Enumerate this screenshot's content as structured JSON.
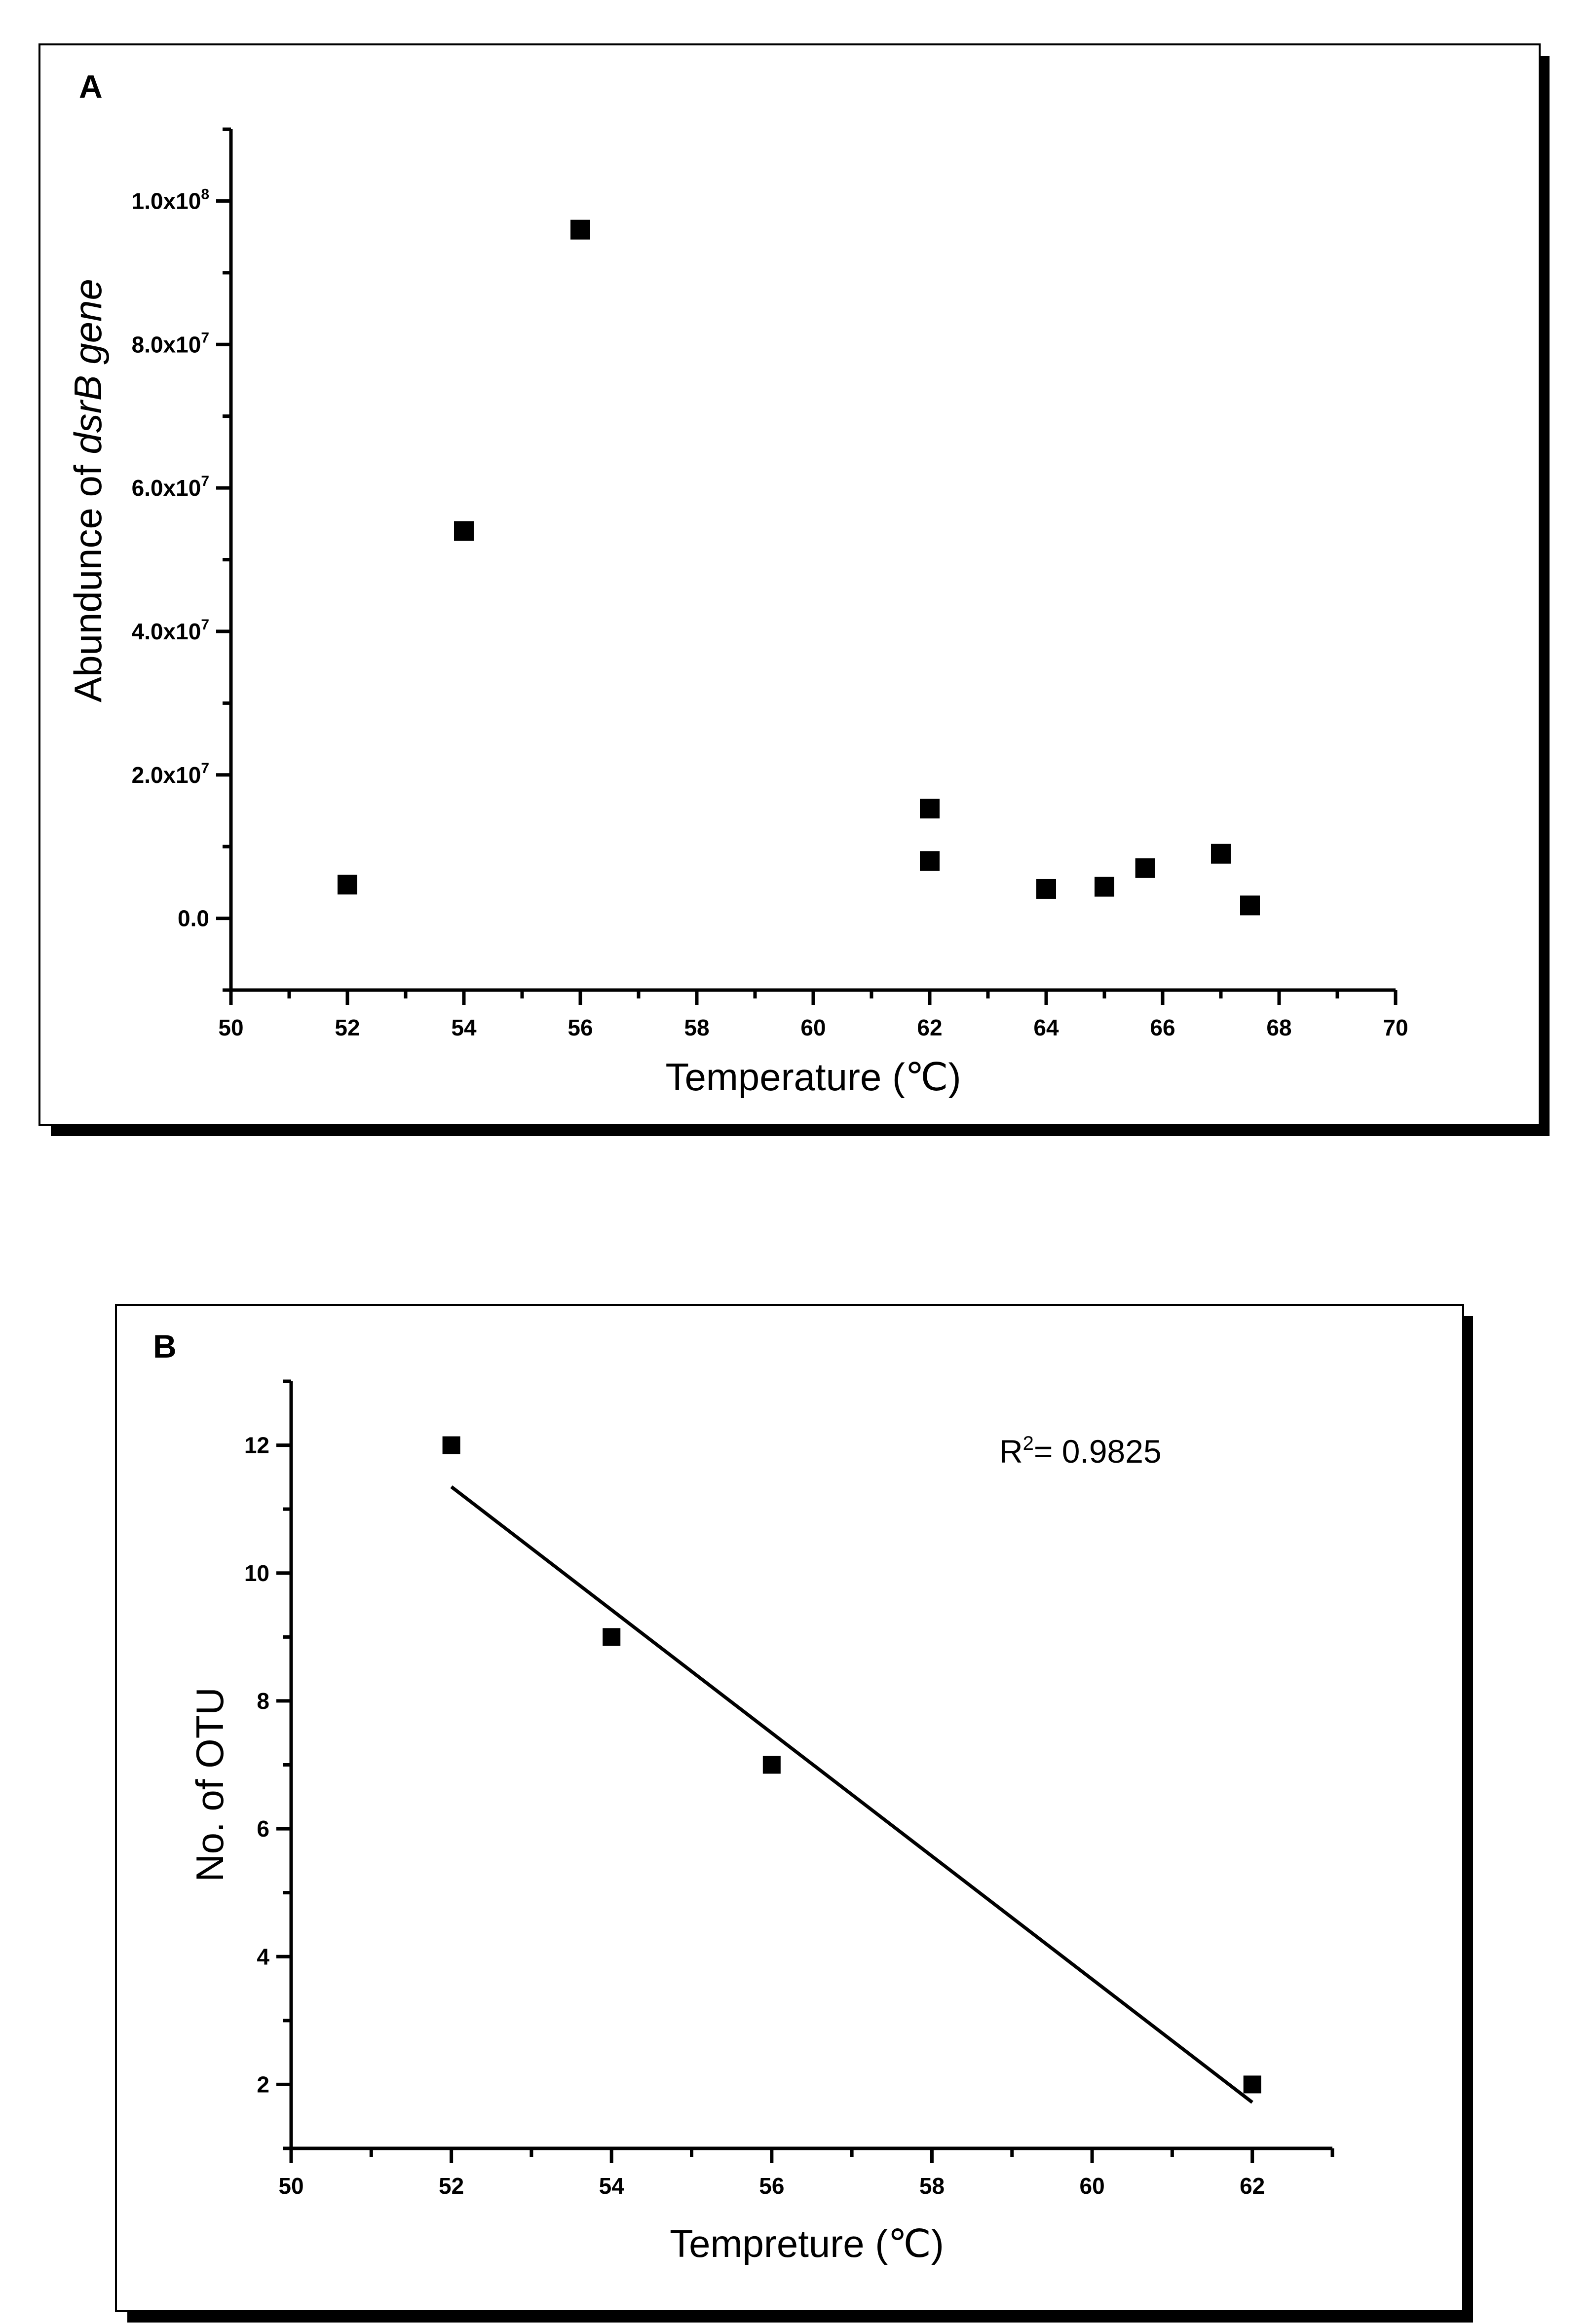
{
  "chart_data": [
    {
      "type": "scatter",
      "panel": "A",
      "title": "",
      "xlabel": "Temperature (℃)",
      "ylabel_prefix": "Abundunce of ",
      "ylabel_italic": "dsrB gene",
      "xlim": [
        50,
        70
      ],
      "ylim": [
        -10000000,
        110000000
      ],
      "x_ticks": [
        50,
        52,
        54,
        56,
        58,
        60,
        62,
        64,
        66,
        68,
        70
      ],
      "y_ticks": [
        {
          "value": 0,
          "mantissa": "0.0",
          "exponent": ""
        },
        {
          "value": 20000000,
          "mantissa": "2.0x10",
          "exponent": "7"
        },
        {
          "value": 40000000,
          "mantissa": "4.0x10",
          "exponent": "7"
        },
        {
          "value": 60000000,
          "mantissa": "6.0x10",
          "exponent": "7"
        },
        {
          "value": 80000000,
          "mantissa": "8.0x10",
          "exponent": "7"
        },
        {
          "value": 100000000,
          "mantissa": "1.0x10",
          "exponent": "8"
        }
      ],
      "series": [
        {
          "name": "dsrB abundance",
          "x": [
            52,
            54,
            56,
            62,
            62,
            64,
            65,
            65.7,
            67,
            67.5
          ],
          "y": [
            4700000,
            54000000,
            96000000,
            15300000,
            8000000,
            4100000,
            4400000,
            7000000,
            9000000,
            1800000
          ]
        }
      ]
    },
    {
      "type": "scatter",
      "panel": "B",
      "title": "",
      "xlabel": "Tempreture (℃)",
      "ylabel": "No. of OTU",
      "xlim": [
        50,
        63
      ],
      "ylim": [
        1,
        13
      ],
      "x_ticks": [
        50,
        52,
        54,
        56,
        58,
        60,
        62
      ],
      "y_ticks": [
        2,
        4,
        6,
        8,
        10,
        12
      ],
      "series": [
        {
          "name": "No. of OTU",
          "x": [
            52,
            54,
            56,
            62
          ],
          "y": [
            12,
            9,
            7,
            2
          ]
        }
      ],
      "fit_line": {
        "x": [
          52,
          62
        ],
        "y": [
          11.35,
          1.72
        ]
      },
      "annotation": {
        "prefix": "R",
        "exponent": "2",
        "suffix": "= 0.9825"
      }
    }
  ]
}
